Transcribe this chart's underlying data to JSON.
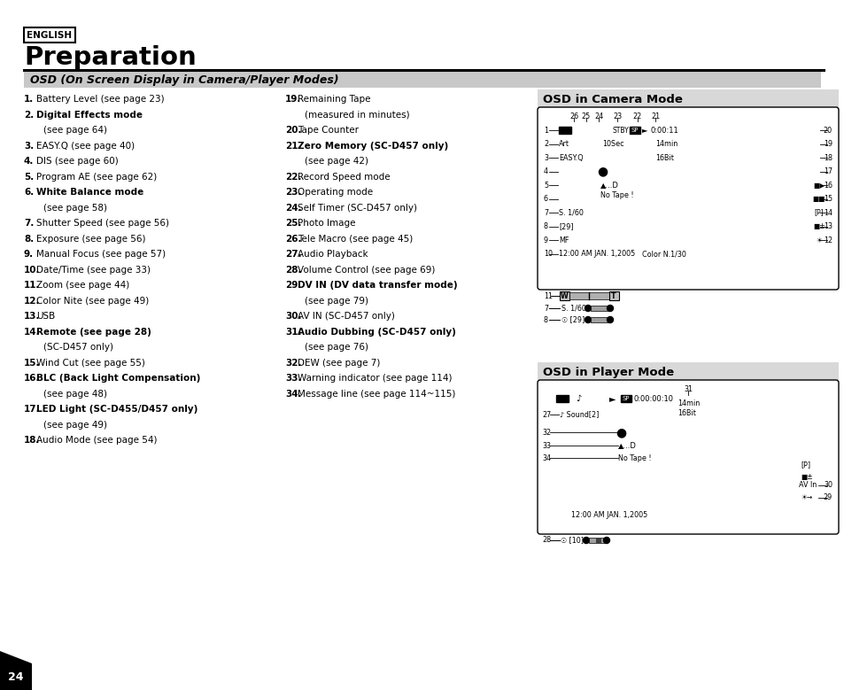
{
  "bg_color": "#ffffff",
  "english_label": "ENGLISH",
  "title": "Preparation",
  "section_title": "OSD (On Screen Display in Camera/Player Modes)",
  "section_bg": "#c8c8c8",
  "panel_bg": "#d8d8d8",
  "camera_title": "OSD in Camera Mode",
  "player_title": "OSD in Player Mode",
  "page_num": "24",
  "left_items": [
    [
      "1.",
      "Battery Level (see page 23)",
      false
    ],
    [
      "2.",
      "Digital Effects mode",
      true
    ],
    [
      "",
      "(see page 64)",
      false
    ],
    [
      "3.",
      "EASY.Q (see page 40)",
      false
    ],
    [
      "4.",
      "DIS (see page 60)",
      false
    ],
    [
      "5.",
      "Program AE (see page 62)",
      false
    ],
    [
      "6.",
      "White Balance mode",
      true
    ],
    [
      "",
      "(see page 58)",
      false
    ],
    [
      "7.",
      "Shutter Speed (see page 56)",
      false
    ],
    [
      "8.",
      "Exposure (see page 56)",
      false
    ],
    [
      "9.",
      "Manual Focus (see page 57)",
      false
    ],
    [
      "10.",
      "Date/Time (see page 33)",
      false
    ],
    [
      "11.",
      "Zoom (see page 44)",
      false
    ],
    [
      "12.",
      "Color Nite (see page 49)",
      false
    ],
    [
      "13.",
      "USB",
      false
    ],
    [
      "14.",
      "Remote (see page 28)",
      true
    ],
    [
      "",
      "(SC-D457 only)",
      false
    ],
    [
      "15.",
      "Wind Cut (see page 55)",
      false
    ],
    [
      "16.",
      "BLC (Back Light Compensation)",
      true
    ],
    [
      "",
      "(see page 48)",
      false
    ],
    [
      "17.",
      "LED Light (SC-D455/D457 only)",
      true
    ],
    [
      "",
      "(see page 49)",
      false
    ],
    [
      "18.",
      "Audio Mode (see page 54)",
      false
    ]
  ],
  "right_items": [
    [
      "19.",
      "Remaining Tape",
      false
    ],
    [
      "",
      "(measured in minutes)",
      false
    ],
    [
      "20.",
      "Tape Counter",
      false
    ],
    [
      "21.",
      "Zero Memory (SC-D457 only)",
      true
    ],
    [
      "",
      "(see page 42)",
      false
    ],
    [
      "22.",
      "Record Speed mode",
      false
    ],
    [
      "23.",
      "Operating mode",
      false
    ],
    [
      "24.",
      "Self Timer (SC-D457 only)",
      false
    ],
    [
      "25.",
      "Photo Image",
      false
    ],
    [
      "26.",
      "Tele Macro (see page 45)",
      false
    ],
    [
      "27.",
      "Audio Playback",
      false
    ],
    [
      "28.",
      "Volume Control (see page 69)",
      false
    ],
    [
      "29.",
      "DV IN (DV data transfer mode)",
      true
    ],
    [
      "",
      "(see page 79)",
      false
    ],
    [
      "30.",
      "AV IN (SC-D457 only)",
      false
    ],
    [
      "31.",
      "Audio Dubbing (SC-D457 only)",
      true
    ],
    [
      "",
      "(see page 76)",
      false
    ],
    [
      "32.",
      "DEW (see page 7)",
      false
    ],
    [
      "33.",
      "Warning indicator (see page 114)",
      false
    ],
    [
      "34.",
      "Message line (see page 114~115)",
      false
    ]
  ]
}
